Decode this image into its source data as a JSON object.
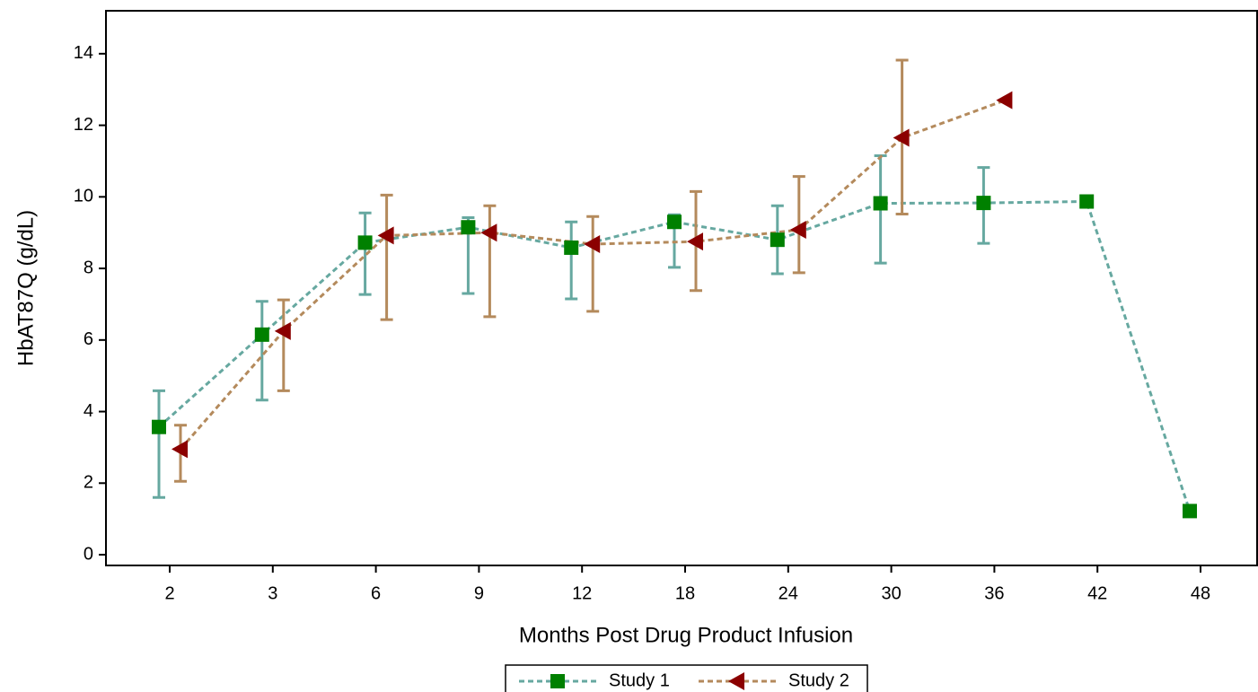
{
  "chart_data": {
    "type": "line",
    "x_label": "Months Post Drug Product Infusion",
    "y_label": "HbAT87Q (g/dL)",
    "categories": [
      "2",
      "3",
      "6",
      "9",
      "12",
      "18",
      "24",
      "30",
      "36",
      "42",
      "48"
    ],
    "series": [
      {
        "name": "Study 1",
        "color": "#66a8a0",
        "marker_color": "#008000",
        "marker": "square",
        "values": [
          3.57,
          6.15,
          8.72,
          9.15,
          8.58,
          9.3,
          8.8,
          9.82,
          9.83,
          9.87,
          1.22
        ],
        "lower": [
          1.6,
          4.32,
          7.27,
          7.3,
          7.15,
          8.03,
          7.85,
          8.15,
          8.7,
          null,
          null
        ],
        "upper": [
          4.58,
          7.08,
          9.55,
          9.42,
          9.3,
          9.5,
          9.75,
          11.15,
          10.82,
          null,
          null
        ]
      },
      {
        "name": "Study 2",
        "color": "#b48a5c",
        "marker_color": "#8b0000",
        "marker": "triangle-left",
        "values": [
          2.95,
          6.25,
          8.92,
          9.0,
          8.68,
          8.75,
          9.08,
          11.65,
          12.7,
          null,
          null
        ],
        "lower": [
          2.05,
          4.58,
          6.57,
          6.65,
          6.8,
          7.38,
          7.88,
          9.52,
          null,
          null,
          null
        ],
        "upper": [
          3.62,
          7.12,
          10.05,
          9.75,
          9.45,
          10.15,
          10.57,
          13.82,
          null,
          null,
          null
        ]
      }
    ],
    "ylim": [
      -0.3,
      15.2
    ],
    "yticks": [
      0,
      2,
      4,
      6,
      8,
      10,
      12,
      14
    ],
    "legend": "bottom"
  }
}
